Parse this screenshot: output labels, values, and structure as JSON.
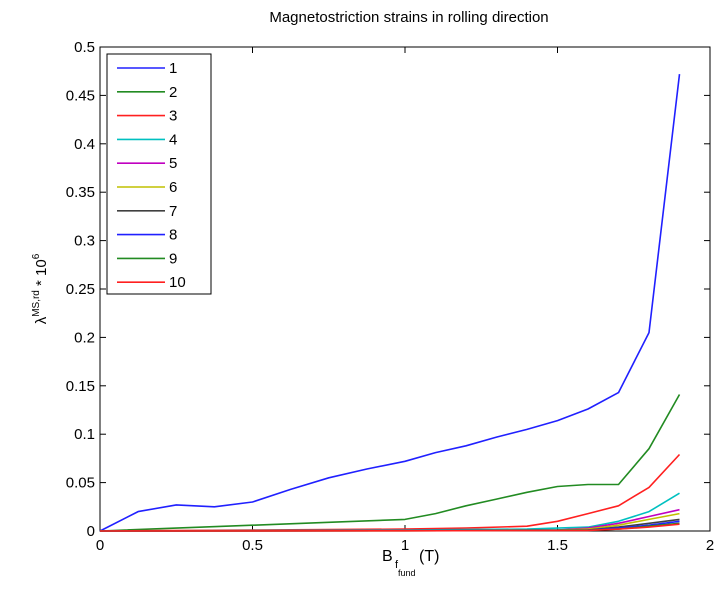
{
  "chart_data": {
    "type": "line",
    "title": "Magnetostriction strains in rolling direction",
    "xlabel": {
      "main": "B",
      "sub": "f",
      "subsub": "fund",
      "unit": "(T)"
    },
    "ylabel": {
      "main": "λ",
      "sup": "MS,rd",
      "mid": " * 10",
      "sup2": "6"
    },
    "xlim": [
      0,
      2
    ],
    "ylim": [
      0,
      0.5
    ],
    "xticks": [
      0,
      0.5,
      1,
      1.5,
      2
    ],
    "xtick_labels": [
      "0",
      "0.5",
      "1",
      "1.5",
      "2"
    ],
    "yticks": [
      0,
      0.05,
      0.1,
      0.15,
      0.2,
      0.25,
      0.3,
      0.35,
      0.4,
      0.45,
      0.5
    ],
    "ytick_labels": [
      "0",
      "0.05",
      "0.1",
      "0.15",
      "0.2",
      "0.25",
      "0.3",
      "0.35",
      "0.4",
      "0.45",
      "0.5"
    ],
    "grid": false,
    "legend_position": "top-left",
    "series": [
      {
        "name": "1",
        "color": "#2020ff",
        "x": [
          0,
          0.125,
          0.25,
          0.375,
          0.5,
          0.625,
          0.75,
          0.875,
          1.0,
          1.1,
          1.2,
          1.3,
          1.4,
          1.5,
          1.6,
          1.7,
          1.8,
          1.9
        ],
        "y": [
          0,
          0.02,
          0.027,
          0.025,
          0.03,
          0.043,
          0.055,
          0.064,
          0.072,
          0.081,
          0.088,
          0.097,
          0.105,
          0.114,
          0.126,
          0.143,
          0.205,
          0.472
        ]
      },
      {
        "name": "2",
        "color": "#228b22",
        "x": [
          0,
          0.25,
          0.5,
          0.75,
          1.0,
          1.1,
          1.2,
          1.3,
          1.4,
          1.5,
          1.6,
          1.7,
          1.8,
          1.9
        ],
        "y": [
          0,
          0.003,
          0.006,
          0.009,
          0.012,
          0.018,
          0.026,
          0.033,
          0.04,
          0.046,
          0.048,
          0.048,
          0.085,
          0.141
        ]
      },
      {
        "name": "3",
        "color": "#ff2020",
        "x": [
          0,
          0.5,
          1.0,
          1.2,
          1.4,
          1.5,
          1.6,
          1.7,
          1.8,
          1.9
        ],
        "y": [
          0,
          0.001,
          0.002,
          0.003,
          0.005,
          0.01,
          0.018,
          0.026,
          0.045,
          0.079
        ]
      },
      {
        "name": "4",
        "color": "#00c0c0",
        "x": [
          0,
          1.0,
          1.4,
          1.6,
          1.7,
          1.8,
          1.9
        ],
        "y": [
          0,
          0.001,
          0.002,
          0.004,
          0.01,
          0.02,
          0.039
        ]
      },
      {
        "name": "5",
        "color": "#c000c0",
        "x": [
          0,
          1.0,
          1.5,
          1.6,
          1.7,
          1.8,
          1.9
        ],
        "y": [
          0,
          0.0005,
          0.001,
          0.003,
          0.008,
          0.015,
          0.022
        ]
      },
      {
        "name": "6",
        "color": "#c0c000",
        "x": [
          0,
          1.0,
          1.5,
          1.6,
          1.7,
          1.8,
          1.9
        ],
        "y": [
          0,
          0.0005,
          0.001,
          0.002,
          0.006,
          0.012,
          0.018
        ]
      },
      {
        "name": "7",
        "color": "#404040",
        "x": [
          0,
          1.0,
          1.6,
          1.7,
          1.8,
          1.9
        ],
        "y": [
          0,
          0.0003,
          0.001,
          0.004,
          0.008,
          0.012
        ]
      },
      {
        "name": "8",
        "color": "#2020ff",
        "x": [
          0,
          1.0,
          1.6,
          1.7,
          1.8,
          1.9
        ],
        "y": [
          0,
          0.0003,
          0.001,
          0.003,
          0.006,
          0.01
        ]
      },
      {
        "name": "9",
        "color": "#228b22",
        "x": [
          0,
          1.0,
          1.6,
          1.7,
          1.8,
          1.9
        ],
        "y": [
          0,
          0.0002,
          0.0008,
          0.002,
          0.005,
          0.008
        ]
      },
      {
        "name": "10",
        "color": "#ff2020",
        "x": [
          0,
          1.0,
          1.6,
          1.7,
          1.8,
          1.9
        ],
        "y": [
          0,
          0.0002,
          0.0006,
          0.002,
          0.004,
          0.007
        ]
      }
    ]
  }
}
